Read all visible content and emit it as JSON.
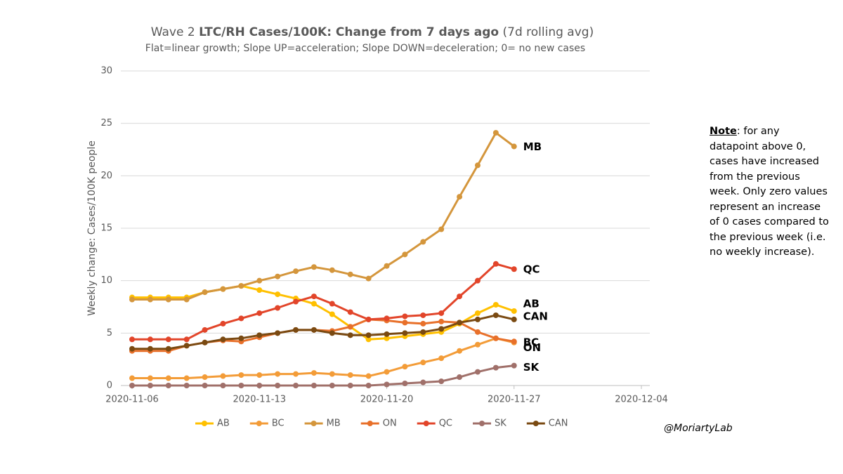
{
  "chart_data": {
    "type": "line",
    "title": {
      "prefix": "Wave 2",
      "emphasis": "LTC/RH Cases/100K: Change from 7 days ago",
      "suffix": "(7d rolling avg)"
    },
    "subtitle": "Flat=linear growth; Slope UP=acceleration; Slope DOWN=deceleration; 0= no new cases",
    "y_label": "Weekly change: Cases/100K people",
    "x": [
      "2020-11-06",
      "2020-11-07",
      "2020-11-08",
      "2020-11-09",
      "2020-11-10",
      "2020-11-11",
      "2020-11-12",
      "2020-11-13",
      "2020-11-14",
      "2020-11-15",
      "2020-11-16",
      "2020-11-17",
      "2020-11-18",
      "2020-11-19",
      "2020-11-20",
      "2020-11-21",
      "2020-11-22",
      "2020-11-23",
      "2020-11-24",
      "2020-11-25",
      "2020-11-26",
      "2020-11-27"
    ],
    "xlim": [
      "2020-11-06",
      "2020-12-04"
    ],
    "xticks": [
      "2020-11-06",
      "2020-11-13",
      "2020-11-20",
      "2020-11-27",
      "2020-12-04"
    ],
    "ylim": [
      0,
      30
    ],
    "yticks": [
      0,
      5,
      10,
      15,
      20,
      25,
      30
    ],
    "grid": true,
    "legend": "bottom",
    "series": [
      {
        "name": "AB",
        "color": "#ffc000",
        "values": [
          8.4,
          8.4,
          8.4,
          8.4,
          8.9,
          9.2,
          9.5,
          9.1,
          8.7,
          8.3,
          7.8,
          6.8,
          5.6,
          4.4,
          4.5,
          4.7,
          4.9,
          5.1,
          5.9,
          6.9,
          7.7,
          7.1
        ]
      },
      {
        "name": "BC",
        "color": "#f39c38",
        "values": [
          0.7,
          0.7,
          0.7,
          0.7,
          0.8,
          0.9,
          1.0,
          1.0,
          1.1,
          1.1,
          1.2,
          1.1,
          1.0,
          0.9,
          1.3,
          1.8,
          2.2,
          2.6,
          3.3,
          3.9,
          4.5,
          4.1
        ]
      },
      {
        "name": "MB",
        "color": "#d4963c",
        "values": [
          8.2,
          8.2,
          8.2,
          8.2,
          8.9,
          9.2,
          9.5,
          10.0,
          10.4,
          10.9,
          11.3,
          11.0,
          10.6,
          10.2,
          11.4,
          12.5,
          13.7,
          14.9,
          18.0,
          21.0,
          24.1,
          22.8
        ]
      },
      {
        "name": "ON",
        "color": "#e8702a",
        "values": [
          3.3,
          3.3,
          3.3,
          3.8,
          4.1,
          4.3,
          4.2,
          4.6,
          5.0,
          5.3,
          5.3,
          5.2,
          5.6,
          6.3,
          6.2,
          6.0,
          5.9,
          6.1,
          6.0,
          5.1,
          4.5,
          4.2
        ]
      },
      {
        "name": "QC",
        "color": "#e2452a",
        "values": [
          4.4,
          4.4,
          4.4,
          4.4,
          5.3,
          5.9,
          6.4,
          6.9,
          7.4,
          8.0,
          8.5,
          7.8,
          7.0,
          6.3,
          6.4,
          6.6,
          6.7,
          6.9,
          8.5,
          10.0,
          11.6,
          11.1
        ]
      },
      {
        "name": "SK",
        "color": "#a0706a",
        "values": [
          0,
          0,
          0,
          0,
          0,
          0,
          0,
          0,
          0,
          0,
          0,
          0,
          0,
          0,
          0.1,
          0.2,
          0.3,
          0.4,
          0.8,
          1.3,
          1.7,
          1.9
        ]
      },
      {
        "name": "CAN",
        "color": "#7a4a12",
        "values": [
          3.5,
          3.5,
          3.5,
          3.8,
          4.1,
          4.4,
          4.5,
          4.8,
          5.0,
          5.3,
          5.3,
          5.0,
          4.8,
          4.8,
          4.9,
          5.0,
          5.1,
          5.4,
          6.0,
          6.3,
          6.7,
          6.3
        ]
      }
    ]
  },
  "note": {
    "label": "Note",
    "text": ": for any datapoint above 0, cases have increased from the previous week. Only zero values represent an increase of 0 cases compared to the previous week (i.e. no weekly increase)."
  },
  "credit": "@MoriartyLab"
}
